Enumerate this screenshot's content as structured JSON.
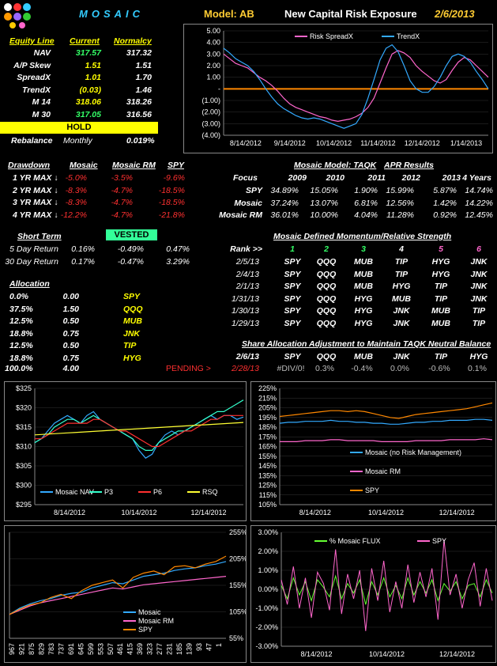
{
  "header": {
    "brand": "MOSAIC",
    "model": "Model: AB",
    "headline": "New Capital Risk Exposure",
    "date": "2/6/2013"
  },
  "equity": {
    "col_label": "Equity Line",
    "col_current": "Current",
    "col_normalcy": "Normalcy",
    "rows": [
      {
        "label": "NAV",
        "current": "317.57",
        "normalcy": "317.32",
        "color": "#33ff66"
      },
      {
        "label": "A/P Skew",
        "current": "1.51",
        "normalcy": "1.51",
        "color": "#ffff00"
      },
      {
        "label": "SpreadX",
        "current": "1.01",
        "normalcy": "1.70",
        "color": "#ffff00"
      },
      {
        "label": "TrendX",
        "current": "(0.03)",
        "normalcy": "1.46",
        "color": "#ffff00"
      },
      {
        "label": "M 14",
        "current": "318.06",
        "normalcy": "318.26",
        "color": "#ffff00"
      },
      {
        "label": "M 30",
        "current": "317.05",
        "normalcy": "316.56",
        "color": "#33ff66"
      }
    ],
    "hold": "HOLD",
    "rebalance_label": "Rebalance",
    "rebalance_freq": "Monthly",
    "rebalance_value": "0.019%"
  },
  "drawdown": {
    "headers": [
      "Drawdown",
      "Mosaic",
      "Mosaic RM",
      "SPY"
    ],
    "rows": [
      {
        "label": "1 YR MAX ↓",
        "vals": [
          "-5.0%",
          "-3.5%",
          "-9.6%"
        ]
      },
      {
        "label": "2 YR MAX ↓",
        "vals": [
          "-8.3%",
          "-4.7%",
          "-18.5%"
        ]
      },
      {
        "label": "3 YR MAX ↓",
        "vals": [
          "-8.3%",
          "-4.7%",
          "-18.5%"
        ]
      },
      {
        "label": "4 YR MAX ↓",
        "vals": [
          "-12.2%",
          "-4.7%",
          "-21.8%"
        ]
      }
    ]
  },
  "apr": {
    "title1": "Mosaic Model:  TAQK",
    "title2": "APR Results",
    "headers": [
      "Focus",
      "2009",
      "2010",
      "2011",
      "2012",
      "2013",
      "4 Years"
    ],
    "rows": [
      {
        "label": "SPY",
        "vals": [
          "34.89%",
          "15.05%",
          "1.90%",
          "15.99%",
          "5.87%",
          "14.74%"
        ]
      },
      {
        "label": "Mosaic",
        "vals": [
          "37.24%",
          "13.07%",
          "6.81%",
          "12.56%",
          "1.42%",
          "14.22%"
        ]
      },
      {
        "label": "Mosaic RM",
        "vals": [
          "36.01%",
          "10.00%",
          "4.04%",
          "11.28%",
          "0.92%",
          "12.45%"
        ]
      }
    ]
  },
  "short_term": {
    "title": "Short Term",
    "vested": "VESTED",
    "rows": [
      {
        "label": "5 Day Return",
        "vals": [
          "0.16%",
          "-0.49%",
          "0.47%"
        ]
      },
      {
        "label": "30 Day Return",
        "vals": [
          "0.17%",
          "-0.47%",
          "3.29%"
        ]
      }
    ]
  },
  "momentum": {
    "title": "Mosaic Defined Momentum/Relative Strength",
    "rank_label": "Rank >>",
    "ranks": [
      "1",
      "2",
      "3",
      "4",
      "5",
      "6"
    ],
    "rank_colors": [
      "#33ff66",
      "#33ff66",
      "#33ff66",
      "#ffffff",
      "#ff66cc",
      "#ff66cc"
    ],
    "rows": [
      {
        "date": "2/5/13",
        "vals": [
          "SPY",
          "QQQ",
          "MUB",
          "TIP",
          "HYG",
          "JNK"
        ]
      },
      {
        "date": "2/4/13",
        "vals": [
          "SPY",
          "QQQ",
          "MUB",
          "TIP",
          "HYG",
          "JNK"
        ]
      },
      {
        "date": "2/1/13",
        "vals": [
          "SPY",
          "QQQ",
          "MUB",
          "HYG",
          "TIP",
          "JNK"
        ]
      },
      {
        "date": "1/31/13",
        "vals": [
          "SPY",
          "QQQ",
          "HYG",
          "MUB",
          "TIP",
          "JNK"
        ]
      },
      {
        "date": "1/30/13",
        "vals": [
          "SPY",
          "QQQ",
          "HYG",
          "JNK",
          "MUB",
          "TIP"
        ]
      },
      {
        "date": "1/29/13",
        "vals": [
          "SPY",
          "QQQ",
          "HYG",
          "JNK",
          "MUB",
          "TIP"
        ]
      }
    ]
  },
  "allocation": {
    "title": "Allocation",
    "rows": [
      {
        "pct": "0.0%",
        "units": "0.00",
        "ticker": "SPY"
      },
      {
        "pct": "37.5%",
        "units": "1.50",
        "ticker": "QQQ"
      },
      {
        "pct": "12.5%",
        "units": "0.50",
        "ticker": "MUB"
      },
      {
        "pct": "18.8%",
        "units": "0.75",
        "ticker": "JNK"
      },
      {
        "pct": "12.5%",
        "units": "0.50",
        "ticker": "TIP"
      },
      {
        "pct": "18.8%",
        "units": "0.75",
        "ticker": "HYG"
      }
    ],
    "total_pct": "100.0%",
    "total_units": "4.00"
  },
  "share_adjust": {
    "title": "Share Allocation Adjustment to Maintain TAQK Neutral Balance",
    "date": "2/6/13",
    "tickers": [
      "SPY",
      "QQQ",
      "MUB",
      "JNK",
      "TIP",
      "HYG"
    ],
    "pending_label": "PENDING >",
    "pending_date": "2/28/13",
    "pending_vals": [
      "#DIV/0!",
      "0.3%",
      "-0.4%",
      "0.0%",
      "-0.6%",
      "0.1%"
    ]
  },
  "chart_data": [
    {
      "type": "line",
      "title": "",
      "x_ticks": [
        "8/14/2012",
        "9/14/2012",
        "10/14/2012",
        "11/14/2012",
        "12/14/2012",
        "1/14/2013"
      ],
      "y_ticks": [
        "5.00",
        "4.00",
        "3.00",
        "2.00",
        "1.00",
        "-",
        "(1.00)",
        "(2.00)",
        "(3.00)",
        "(4.00)"
      ],
      "ylim": [
        -4,
        5
      ],
      "legend_position": "top",
      "series": [
        {
          "name": "Risk SpreadX",
          "color": "#ff66cc",
          "values": [
            3.0,
            2.6,
            2.2,
            2.0,
            1.8,
            1.4,
            1.0,
            0.7,
            0.3,
            -0.2,
            -0.8,
            -1.3,
            -1.6,
            -1.8,
            -2.0,
            -2.2,
            -2.4,
            -2.5,
            -2.7,
            -2.8,
            -2.7,
            -2.6,
            -2.4,
            -2.1,
            -1.6,
            -0.8,
            0.5,
            1.8,
            3.0,
            3.3,
            3.1,
            2.7,
            2.0,
            1.5,
            1.1,
            0.7,
            0.5,
            0.8,
            1.6,
            2.3,
            2.7,
            2.5,
            2.0,
            1.5,
            1.0
          ]
        },
        {
          "name": "TrendX",
          "color": "#33aaff",
          "values": [
            3.5,
            3.1,
            2.6,
            2.3,
            2.0,
            1.5,
            0.8,
            0.0,
            -0.7,
            -1.3,
            -1.7,
            -2.0,
            -2.3,
            -2.5,
            -2.6,
            -2.5,
            -2.6,
            -2.8,
            -3.0,
            -3.2,
            -3.4,
            -3.2,
            -3.0,
            -2.2,
            -0.8,
            0.8,
            2.5,
            3.5,
            3.8,
            3.2,
            2.0,
            0.7,
            0.0,
            -0.3,
            -0.3,
            0.2,
            1.0,
            2.0,
            2.8,
            3.0,
            2.8,
            2.3,
            1.5,
            0.8,
            0.0
          ]
        }
      ]
    },
    {
      "type": "line",
      "title": "",
      "x_ticks": [
        "8/14/2012",
        "10/14/2012",
        "12/14/2012"
      ],
      "y_ticks": [
        "$325",
        "$320",
        "$315",
        "$310",
        "$305",
        "$300",
        "$295"
      ],
      "ylim": [
        295,
        325
      ],
      "legend_position": "bottom",
      "series": [
        {
          "name": "Mosaic NAV",
          "color": "#33aaff",
          "values": [
            311,
            312,
            314,
            316,
            317,
            318,
            317,
            316,
            318,
            319,
            317,
            316,
            315,
            314,
            313,
            312,
            309,
            307,
            308,
            311,
            313,
            314,
            313,
            314,
            315,
            316,
            317,
            318,
            317,
            318,
            318,
            317,
            317.6
          ]
        },
        {
          "name": "P3",
          "color": "#33ffcc",
          "values": [
            311,
            312,
            313,
            315,
            316,
            317,
            317,
            316,
            317,
            318,
            317,
            316,
            315,
            314,
            313,
            312,
            310,
            309,
            309,
            311,
            312,
            313,
            314,
            314,
            315,
            316,
            317,
            318,
            319,
            319,
            320,
            321,
            322
          ]
        },
        {
          "name": "P6",
          "color": "#ff3030",
          "values": [
            312,
            312,
            313,
            314,
            315,
            316,
            316,
            316,
            316,
            317,
            317,
            316,
            315,
            314,
            314,
            313,
            312,
            311,
            310,
            310,
            311,
            312,
            313,
            314,
            314,
            315,
            316,
            317,
            317,
            318,
            318,
            318,
            318
          ]
        },
        {
          "name": "RSQ",
          "color": "#ffff33",
          "values": [
            313,
            313.1,
            313.2,
            313.3,
            313.4,
            313.5,
            313.6,
            313.7,
            313.8,
            313.9,
            314,
            314.1,
            314.2,
            314.3,
            314.4,
            314.5,
            314.6,
            314.7,
            314.8,
            314.9,
            315,
            315.1,
            315.2,
            315.3,
            315.4,
            315.5,
            315.6,
            315.7,
            315.8,
            315.9,
            316,
            316.1,
            316.2
          ]
        }
      ]
    },
    {
      "type": "line",
      "title": "",
      "x_ticks": [
        "8/14/2012",
        "10/14/2012",
        "12/14/2012"
      ],
      "y_ticks": [
        "225%",
        "215%",
        "205%",
        "195%",
        "185%",
        "175%",
        "165%",
        "155%",
        "145%",
        "135%",
        "125%",
        "115%",
        "105%"
      ],
      "ylim": [
        105,
        225
      ],
      "legend_position": "bottom",
      "series": [
        {
          "name": "Mosaic (no Risk Management)",
          "color": "#33aaff",
          "values": [
            189,
            190,
            190,
            191,
            191,
            191,
            192,
            191,
            191,
            190,
            190,
            189,
            189,
            188,
            188,
            189,
            190,
            190,
            191,
            191,
            192,
            192,
            192,
            193,
            193,
            192
          ]
        },
        {
          "name": "Mosaic RM",
          "color": "#ff66cc",
          "values": [
            170,
            170,
            170,
            171,
            171,
            171,
            172,
            172,
            171,
            171,
            171,
            171,
            170,
            170,
            170,
            170,
            171,
            171,
            171,
            171,
            172,
            172,
            172,
            172,
            173,
            172
          ]
        },
        {
          "name": "SPY",
          "color": "#ff8800",
          "values": [
            196,
            197,
            198,
            199,
            200,
            201,
            202,
            202,
            201,
            202,
            201,
            199,
            197,
            195,
            194,
            196,
            198,
            199,
            200,
            201,
            202,
            203,
            204,
            206,
            208,
            210
          ]
        }
      ]
    },
    {
      "type": "line",
      "title": "",
      "x_ticks": [
        "967",
        "921",
        "875",
        "829",
        "783",
        "737",
        "691",
        "645",
        "599",
        "553",
        "507",
        "461",
        "415",
        "369",
        "323",
        "277",
        "231",
        "185",
        "139",
        "93",
        "47",
        "1"
      ],
      "y_ticks": [
        "255%",
        "205%",
        "155%",
        "105%",
        "55%"
      ],
      "ylim": [
        55,
        255
      ],
      "legend_position": "bottom",
      "series": [
        {
          "name": "Mosaic",
          "color": "#33aaff",
          "values": [
            100,
            112,
            120,
            126,
            130,
            136,
            140,
            142,
            150,
            155,
            160,
            158,
            165,
            172,
            175,
            178,
            183,
            186,
            188,
            192,
            195,
            200
          ]
        },
        {
          "name": "Mosaic RM",
          "color": "#ff66cc",
          "values": [
            100,
            108,
            116,
            122,
            126,
            130,
            134,
            138,
            142,
            146,
            150,
            148,
            152,
            156,
            158,
            160,
            162,
            164,
            166,
            168,
            170,
            172
          ]
        },
        {
          "name": "SPY",
          "color": "#ff8800",
          "values": [
            100,
            110,
            118,
            122,
            132,
            138,
            130,
            145,
            155,
            160,
            165,
            150,
            170,
            178,
            182,
            175,
            190,
            192,
            188,
            195,
            200,
            210
          ]
        }
      ]
    },
    {
      "type": "line",
      "title": "",
      "x_ticks": [
        "8/14/2012",
        "10/14/2012",
        "12/14/2012"
      ],
      "y_ticks": [
        "3.00%",
        "2.00%",
        "1.00%",
        "0.00%",
        "-1.00%",
        "-2.00%",
        "-3.00%"
      ],
      "ylim": [
        -3,
        3
      ],
      "legend_position": "top",
      "series": [
        {
          "name": "% Mosaic FLUX",
          "color": "#66ff33",
          "values": [
            0.2,
            -0.5,
            0.6,
            -0.3,
            0.4,
            -0.6,
            0.5,
            0.1,
            -0.4,
            0.7,
            -0.5,
            0.3,
            -0.2,
            0.5,
            -0.8,
            0.4,
            -0.3,
            0.6,
            -0.4,
            0.2,
            -0.5,
            0.6,
            -0.3,
            0.4,
            -0.2,
            0.5,
            -0.6,
            0.3,
            -0.1,
            0.4,
            -0.5,
            0.2,
            0.3,
            -0.4,
            0.5,
            -0.2
          ]
        },
        {
          "name": "SPY",
          "color": "#ff66cc",
          "values": [
            0.5,
            -0.8,
            1.2,
            -1.0,
            0.6,
            -1.5,
            0.9,
            0.3,
            -1.1,
            2.1,
            -1.3,
            0.8,
            -0.5,
            1.0,
            -2.2,
            1.1,
            -0.6,
            1.5,
            -1.2,
            0.4,
            -1.0,
            1.3,
            -0.7,
            0.9,
            -0.4,
            1.1,
            -1.6,
            2.6,
            -0.3,
            0.8,
            -1.0,
            0.5,
            1.4,
            -0.9,
            1.1,
            -0.6
          ]
        }
      ]
    }
  ]
}
